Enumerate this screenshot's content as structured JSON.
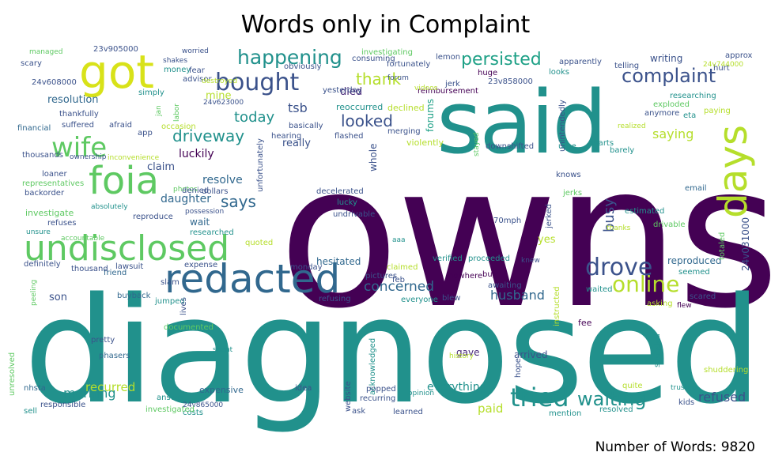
{
  "title": "Words only in Complaint",
  "footer": "Number of Words: 9820",
  "chart_data": {
    "type": "wordcloud",
    "title": "Words only in Complaint",
    "total_words": 9820,
    "colormap": "viridis",
    "words": [
      {
        "text": "owns",
        "c": "#440154"
      },
      {
        "text": "diagnosed",
        "c": "#21918c"
      },
      {
        "text": "said",
        "c": "#21918c"
      },
      {
        "text": "redacted",
        "c": "#31688e"
      },
      {
        "text": "got",
        "c": "#d8e219"
      },
      {
        "text": "foia",
        "c": "#5ec962"
      },
      {
        "text": "undisclosed",
        "c": "#5ec962"
      },
      {
        "text": "days",
        "c": "#b5de2b"
      },
      {
        "text": "wife",
        "c": "#5ec962"
      },
      {
        "text": "bought",
        "c": "#3b528b"
      },
      {
        "text": "happening",
        "c": "#21918c"
      },
      {
        "text": "complaint",
        "c": "#3b528b"
      },
      {
        "text": "drove",
        "c": "#3b528b"
      },
      {
        "text": "online",
        "c": "#b5de2b"
      },
      {
        "text": "tried",
        "c": "#21918c"
      },
      {
        "text": "waiting",
        "c": "#21918c"
      },
      {
        "text": "persisted",
        "c": "#1fa187"
      },
      {
        "text": "thank",
        "c": "#b5de2b"
      },
      {
        "text": "driveway",
        "c": "#21918c"
      },
      {
        "text": "looked",
        "c": "#3b528b"
      },
      {
        "text": "concerned",
        "c": "#31688e"
      },
      {
        "text": "says",
        "c": "#31688e"
      },
      {
        "text": "today",
        "c": "#21918c"
      },
      {
        "text": "saying",
        "c": "#b5de2b"
      },
      {
        "text": "busy",
        "c": "#3b528b"
      },
      {
        "text": "morning",
        "c": "#21918c"
      },
      {
        "text": "husband",
        "c": "#31688e"
      },
      {
        "text": "refused",
        "c": "#3b528b"
      },
      {
        "text": "paid",
        "c": "#b5de2b"
      },
      {
        "text": "recurred",
        "c": "#b5de2b"
      },
      {
        "text": "everything",
        "c": "#21918c"
      },
      {
        "text": "luckily",
        "c": "#440154"
      },
      {
        "text": "daughter",
        "c": "#31688e"
      },
      {
        "text": "tsb",
        "c": "#3b528b"
      },
      {
        "text": "resolve",
        "c": "#31688e"
      },
      {
        "text": "claim",
        "c": "#3b528b"
      },
      {
        "text": "yes",
        "c": "#b5de2b"
      },
      {
        "text": "son",
        "c": "#3b528b"
      },
      {
        "text": "arrived",
        "c": "#3b528b"
      },
      {
        "text": "resolution",
        "c": "#31688e"
      },
      {
        "text": "writing",
        "c": "#3b528b"
      },
      {
        "text": "reproduced",
        "c": "#31688e"
      },
      {
        "text": "24v031000",
        "c": "#3b528b"
      },
      {
        "text": "really",
        "c": "#3b528b"
      },
      {
        "text": "died",
        "c": "#482878"
      },
      {
        "text": "hesitated",
        "c": "#31688e"
      },
      {
        "text": "wait",
        "c": "#31688e"
      },
      {
        "text": "gave",
        "c": "#482878"
      },
      {
        "text": "fee",
        "c": "#440154"
      },
      {
        "text": "investigate",
        "c": "#5ec962"
      },
      {
        "text": "expensive",
        "c": "#31688e"
      },
      {
        "text": "reoccurred",
        "c": "#21918c"
      },
      {
        "text": "declined",
        "c": "#b5de2b"
      },
      {
        "text": "forums",
        "c": "#1fa187"
      },
      {
        "text": "whole",
        "c": "#3b528b"
      },
      {
        "text": "violently",
        "c": "#b5de2b"
      },
      {
        "text": "downshifted",
        "c": "#3b528b"
      },
      {
        "text": "knows",
        "c": "#3b528b"
      },
      {
        "text": "jerks",
        "c": "#5ec962"
      },
      {
        "text": "email",
        "c": "#31688e"
      },
      {
        "text": "estimated",
        "c": "#21918c"
      },
      {
        "text": "drivable",
        "c": "#5ec962"
      },
      {
        "text": "thanks",
        "c": "#b5de2b"
      },
      {
        "text": "totaled",
        "c": "#5ec962"
      },
      {
        "text": "seemed",
        "c": "#21918c"
      },
      {
        "text": "scared",
        "c": "#3b528b"
      },
      {
        "text": "waited",
        "c": "#21918c"
      },
      {
        "text": "quite",
        "c": "#b5de2b"
      },
      {
        "text": "trustee",
        "c": "#21918c"
      },
      {
        "text": "shuddering",
        "c": "#b5de2b"
      },
      {
        "text": "kids",
        "c": "#3b528b"
      },
      {
        "text": "resolved",
        "c": "#21918c"
      },
      {
        "text": "mention",
        "c": "#21918c"
      },
      {
        "text": "hope",
        "c": "#3b528b"
      },
      {
        "text": "sounded",
        "c": "#21918c"
      },
      {
        "text": "flew",
        "c": "#440154"
      },
      {
        "text": "asking",
        "c": "#b5de2b"
      },
      {
        "text": "instructed",
        "c": "#b5de2b"
      },
      {
        "text": "awaiting",
        "c": "#3b528b"
      },
      {
        "text": "knew",
        "c": "#3b528b"
      },
      {
        "text": "nowhere",
        "c": "#440154"
      },
      {
        "text": "blew",
        "c": "#3b528b"
      },
      {
        "text": "refusing",
        "c": "#3b528b"
      },
      {
        "text": "pictures",
        "c": "#3b528b"
      },
      {
        "text": "feb",
        "c": "#3b528b"
      },
      {
        "text": "claimed",
        "c": "#b5de2b"
      },
      {
        "text": "verified",
        "c": "#21918c"
      },
      {
        "text": "proceeded",
        "c": "#21918c"
      },
      {
        "text": "everyone",
        "c": "#21918c"
      },
      {
        "text": "history",
        "c": "#b5de2b"
      },
      {
        "text": "buy",
        "c": "#440154"
      },
      {
        "text": "acknowledged",
        "c": "#21918c"
      },
      {
        "text": "website",
        "c": "#3b528b"
      },
      {
        "text": "popped",
        "c": "#3b528b"
      },
      {
        "text": "recurring",
        "c": "#3b528b"
      },
      {
        "text": "opinion",
        "c": "#21918c"
      },
      {
        "text": "learned",
        "c": "#3b528b"
      },
      {
        "text": "ask",
        "c": "#3b528b"
      },
      {
        "text": "idea",
        "c": "#3b528b"
      },
      {
        "text": "costs",
        "c": "#21918c"
      },
      {
        "text": "24v865000",
        "c": "#3b528b"
      },
      {
        "text": "answer",
        "c": "#21918c"
      },
      {
        "text": "investigated",
        "c": "#5ec962"
      },
      {
        "text": "responsible",
        "c": "#3b528b"
      },
      {
        "text": "sell",
        "c": "#21918c"
      },
      {
        "text": "nhsta",
        "c": "#31688e"
      },
      {
        "text": "unresolved",
        "c": "#5ec962"
      },
      {
        "text": "phasers",
        "c": "#31688e"
      },
      {
        "text": "spent",
        "c": "#21918c"
      },
      {
        "text": "pretty",
        "c": "#3b528b"
      },
      {
        "text": "documented",
        "c": "#5ec962"
      },
      {
        "text": "jumped",
        "c": "#21918c"
      },
      {
        "text": "lives",
        "c": "#3b528b"
      },
      {
        "text": "buyback",
        "c": "#31688e"
      },
      {
        "text": "slam",
        "c": "#3b528b"
      },
      {
        "text": "expense",
        "c": "#3b528b"
      },
      {
        "text": "lawsuit",
        "c": "#3b528b"
      },
      {
        "text": "friend",
        "c": "#31688e"
      },
      {
        "text": "thousand",
        "c": "#3b528b"
      },
      {
        "text": "definitely",
        "c": "#3b528b"
      },
      {
        "text": "peeling",
        "c": "#5ec962"
      },
      {
        "text": "quoted",
        "c": "#b5de2b"
      },
      {
        "text": "monday",
        "c": "#3b528b"
      },
      {
        "text": "researched",
        "c": "#21918c"
      },
      {
        "text": "unsure",
        "c": "#21918c"
      },
      {
        "text": "accountable",
        "c": "#5ec962"
      },
      {
        "text": "refuses",
        "c": "#3b528b"
      },
      {
        "text": "possession",
        "c": "#3b528b"
      },
      {
        "text": "reproduce",
        "c": "#3b528b"
      },
      {
        "text": "absolutely",
        "c": "#21918c"
      },
      {
        "text": "backorder",
        "c": "#3b528b"
      },
      {
        "text": "loaner",
        "c": "#3b528b"
      },
      {
        "text": "representatives",
        "c": "#5ec962"
      },
      {
        "text": "photos",
        "c": "#5ec962"
      },
      {
        "text": "denied",
        "c": "#3b528b"
      },
      {
        "text": "dollars",
        "c": "#3b528b"
      },
      {
        "text": "thousands",
        "c": "#3b528b"
      },
      {
        "text": "ownership",
        "c": "#3b528b"
      },
      {
        "text": "inconvenience",
        "c": "#b5de2b"
      },
      {
        "text": "thankfully",
        "c": "#3b528b"
      },
      {
        "text": "suffered",
        "c": "#3b528b"
      },
      {
        "text": "afraid",
        "c": "#3b528b"
      },
      {
        "text": "financial",
        "c": "#31688e"
      },
      {
        "text": "occasion",
        "c": "#b5de2b"
      },
      {
        "text": "app",
        "c": "#3b528b"
      },
      {
        "text": "labor",
        "c": "#5ec962"
      },
      {
        "text": "jan",
        "c": "#5ec962"
      },
      {
        "text": "simply",
        "c": "#21918c"
      },
      {
        "text": "24v623000",
        "c": "#3b528b"
      },
      {
        "text": "mine",
        "c": "#b5de2b"
      },
      {
        "text": "advisor",
        "c": "#3b528b"
      },
      {
        "text": "money",
        "c": "#21918c"
      },
      {
        "text": "fear",
        "c": "#3b528b"
      },
      {
        "text": "destroyed",
        "c": "#b5de2b"
      },
      {
        "text": "shakes",
        "c": "#3b528b"
      },
      {
        "text": "worried",
        "c": "#3b528b"
      },
      {
        "text": "23v905000",
        "c": "#3b528b"
      },
      {
        "text": "managed",
        "c": "#5ec962"
      },
      {
        "text": "scary",
        "c": "#3b528b"
      },
      {
        "text": "24v608000",
        "c": "#3b528b"
      },
      {
        "text": "unfortunately",
        "c": "#3b528b"
      },
      {
        "text": "obviously",
        "c": "#3b528b"
      },
      {
        "text": "investigating",
        "c": "#5ec962"
      },
      {
        "text": "consuming",
        "c": "#3b528b"
      },
      {
        "text": "fortunately",
        "c": "#3b528b"
      },
      {
        "text": "lemon",
        "c": "#3b528b"
      },
      {
        "text": "jerk",
        "c": "#3b528b"
      },
      {
        "text": "huge",
        "c": "#440154"
      },
      {
        "text": "23v858000",
        "c": "#3b528b"
      },
      {
        "text": "apparently",
        "c": "#3b528b"
      },
      {
        "text": "looks",
        "c": "#21918c"
      },
      {
        "text": "reimbursement",
        "c": "#440154"
      },
      {
        "text": "yesterday",
        "c": "#3b528b"
      },
      {
        "text": "videos",
        "c": "#b5de2b"
      },
      {
        "text": "forum",
        "c": "#3b528b"
      },
      {
        "text": "basically",
        "c": "#3b528b"
      },
      {
        "text": "hearing",
        "c": "#3b528b"
      },
      {
        "text": "flashed",
        "c": "#3b528b"
      },
      {
        "text": "merging",
        "c": "#3b528b"
      },
      {
        "text": "stayed",
        "c": "#5ec962"
      },
      {
        "text": "urge",
        "c": "#21918c"
      },
      {
        "text": "quarts",
        "c": "#21918c"
      },
      {
        "text": "unintendedly",
        "c": "#3b528b"
      },
      {
        "text": "realized",
        "c": "#b5de2b"
      },
      {
        "text": "barely",
        "c": "#21918c"
      },
      {
        "text": "hurt",
        "c": "#3b528b"
      },
      {
        "text": "approx",
        "c": "#3b528b"
      },
      {
        "text": "24v744000",
        "c": "#b5de2b"
      },
      {
        "text": "telling",
        "c": "#3b528b"
      },
      {
        "text": "researching",
        "c": "#21918c"
      },
      {
        "text": "exploded",
        "c": "#5ec962"
      },
      {
        "text": "paying",
        "c": "#b5de2b"
      },
      {
        "text": "anymore",
        "c": "#3b528b"
      },
      {
        "text": "eta",
        "c": "#21918c"
      },
      {
        "text": "decelerated",
        "c": "#3b528b"
      },
      {
        "text": "lucky",
        "c": "#21918c"
      },
      {
        "text": "undrivable",
        "c": "#3b528b"
      },
      {
        "text": "jerked",
        "c": "#3b528b"
      },
      {
        "text": "70mph",
        "c": "#3b528b"
      },
      {
        "text": "aaa",
        "c": "#21918c"
      }
    ]
  }
}
